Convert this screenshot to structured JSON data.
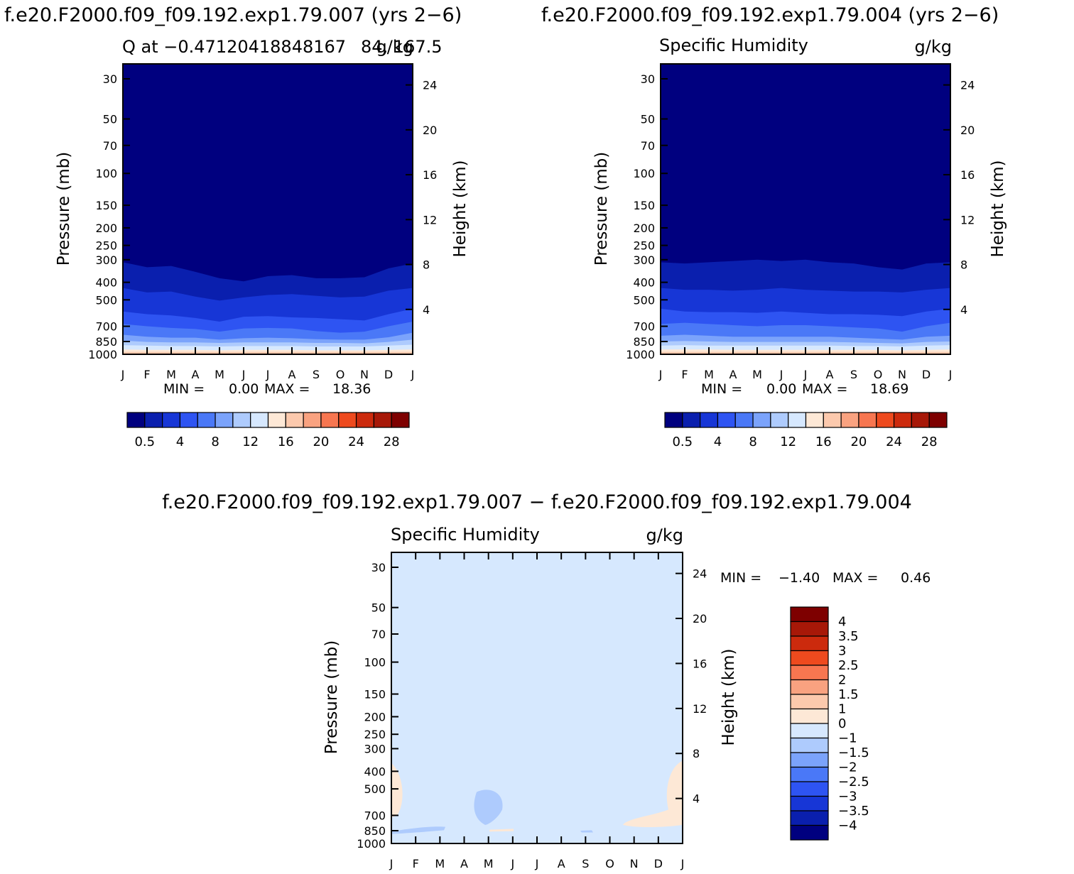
{
  "colors": {
    "levels": [
      "#00007f",
      "#0a1fae",
      "#1736d6",
      "#2e54f2",
      "#4a78f7",
      "#7ba3fb",
      "#aecbfd",
      "#d6e8fe",
      "#fde8d6",
      "#fcc9ad",
      "#f9a280",
      "#f77650",
      "#ee4a1e",
      "#cc2a0d",
      "#a71808",
      "#7e0000"
    ],
    "diff": [
      "#00007f",
      "#0a1fae",
      "#1736d6",
      "#2e54f2",
      "#4a78f7",
      "#7ba3fb",
      "#aecbfd",
      "#d6e8fe",
      "#fde8d6",
      "#fcc9ad",
      "#f9a280",
      "#f77650",
      "#ee4a1e",
      "#cc2a0d",
      "#a71808",
      "#7e0000"
    ]
  },
  "charts": [
    {
      "title": "f.e20.F2000.f09_f09.192.exp1.79.007 (yrs 2−6)",
      "left_label": "Q at −0.47120418848167",
      "left_label_overlap": "84, 167.5",
      "right_label": "g/kg",
      "min_text": "MIN =",
      "min_value": "0.00",
      "max_text": "MAX =",
      "max_value": "18.36"
    },
    {
      "title": "f.e20.F2000.f09_f09.192.exp1.79.004 (yrs 2−6)",
      "left_label": "Specific Humidity",
      "right_label": "g/kg",
      "min_text": "MIN =",
      "min_value": "0.00",
      "max_text": "MAX =",
      "max_value": "18.69"
    },
    {
      "title": "f.e20.F2000.f09_f09.192.exp1.79.007 − f.e20.F2000.f09_f09.192.exp1.79.004",
      "left_label": "Specific Humidity",
      "right_label": "g/kg",
      "min_text": "MIN =",
      "min_value": "−1.40",
      "max_text": "MAX =",
      "max_value": "0.46"
    }
  ],
  "chart_data": [
    {
      "type": "heatmap",
      "name_in_image": "f.e20.F2000.f09_f09.192.exp1.79.007 (yrs 2−6)",
      "x_ticks": [
        "J",
        "F",
        "M",
        "A",
        "M",
        "J",
        "J",
        "A",
        "S",
        "O",
        "N",
        "D",
        "J"
      ],
      "y_ticks_pressure": [
        30,
        50,
        70,
        100,
        150,
        200,
        250,
        300,
        400,
        500,
        700,
        850,
        1000
      ],
      "y_ticks_height": [
        24,
        20,
        16,
        12,
        8,
        4
      ],
      "ylabel": "Pressure (mb)",
      "ylabel_right": "Height (km)",
      "colorbar_labels": [
        "0.5",
        "4",
        "8",
        "12",
        "16",
        "20",
        "24",
        "28"
      ],
      "min": 0.0,
      "max": 18.36,
      "contour_pressures": {
        "b1": [
          310,
          330,
          325,
          350,
          380,
          395,
          370,
          365,
          380,
          380,
          375,
          335,
          315
        ],
        "b2": [
          430,
          455,
          450,
          480,
          505,
          485,
          470,
          465,
          475,
          485,
          480,
          445,
          430
        ],
        "b3": [
          580,
          600,
          610,
          630,
          660,
          620,
          615,
          625,
          630,
          640,
          650,
          600,
          560
        ],
        "b4": [
          680,
          700,
          715,
          725,
          750,
          720,
          715,
          720,
          745,
          760,
          750,
          700,
          660
        ],
        "b5": [
          780,
          800,
          810,
          810,
          830,
          815,
          810,
          815,
          825,
          830,
          830,
          805,
          760
        ],
        "b6": [
          840,
          855,
          860,
          860,
          865,
          860,
          860,
          860,
          865,
          865,
          870,
          855,
          830
        ],
        "b7": [
          890,
          895,
          900,
          900,
          905,
          900,
          900,
          900,
          905,
          905,
          905,
          895,
          885
        ],
        "b8": [
          940,
          945,
          945,
          945,
          950,
          945,
          945,
          945,
          950,
          950,
          950,
          945,
          940
        ]
      }
    },
    {
      "type": "heatmap",
      "name_in_image": "f.e20.F2000.f09_f09.192.exp1.79.004 (yrs 2−6)",
      "x_ticks": [
        "J",
        "F",
        "M",
        "A",
        "M",
        "J",
        "J",
        "A",
        "S",
        "O",
        "N",
        "D",
        "J"
      ],
      "y_ticks_pressure": [
        30,
        50,
        70,
        100,
        150,
        200,
        250,
        300,
        400,
        500,
        700,
        850,
        1000
      ],
      "y_ticks_height": [
        24,
        20,
        16,
        12,
        8,
        4
      ],
      "ylabel": "Pressure (mb)",
      "ylabel_right": "Height (km)",
      "colorbar_labels": [
        "0.5",
        "4",
        "8",
        "12",
        "16",
        "20",
        "24",
        "28"
      ],
      "min": 0.0,
      "max": 18.69,
      "contour_pressures": {
        "b1": [
          310,
          315,
          310,
          305,
          300,
          305,
          300,
          310,
          315,
          330,
          340,
          315,
          310
        ],
        "b2": [
          430,
          440,
          440,
          445,
          440,
          430,
          440,
          445,
          450,
          450,
          455,
          440,
          430
        ],
        "b3": [
          560,
          580,
          585,
          585,
          590,
          580,
          590,
          600,
          600,
          605,
          615,
          580,
          560
        ],
        "b4": [
          680,
          670,
          680,
          690,
          700,
          690,
          690,
          700,
          710,
          720,
          750,
          700,
          670
        ],
        "b5": [
          790,
          780,
          790,
          800,
          800,
          800,
          800,
          800,
          810,
          820,
          830,
          800,
          790
        ],
        "b6": [
          850,
          845,
          850,
          855,
          855,
          855,
          855,
          855,
          860,
          865,
          870,
          855,
          850
        ],
        "b7": [
          895,
          890,
          895,
          895,
          895,
          895,
          895,
          895,
          900,
          900,
          905,
          895,
          890
        ],
        "b8": [
          940,
          940,
          940,
          945,
          945,
          945,
          945,
          945,
          945,
          945,
          950,
          945,
          940
        ]
      }
    },
    {
      "type": "heatmap",
      "name_in_image": "f.e20.F2000.f09_f09.192.exp1.79.007 − f.e20.F2000.f09_f09.192.exp1.79.004",
      "x_ticks": [
        "J",
        "F",
        "M",
        "A",
        "M",
        "J",
        "J",
        "A",
        "S",
        "O",
        "N",
        "D",
        "J"
      ],
      "y_ticks_pressure": [
        30,
        50,
        70,
        100,
        150,
        200,
        250,
        300,
        400,
        500,
        700,
        850,
        1000
      ],
      "y_ticks_height": [
        24,
        20,
        16,
        12,
        8,
        4
      ],
      "ylabel": "Pressure (mb)",
      "ylabel_right": "Height (km)",
      "colorbar_labels": [
        "4",
        "3.5",
        "3",
        "2.5",
        "2",
        "1.5",
        "1",
        "0",
        "−1",
        "−1.5",
        "−2",
        "−2.5",
        "−3",
        "−3.5",
        "−4"
      ],
      "min": -1.4,
      "max": 0.46
    }
  ]
}
